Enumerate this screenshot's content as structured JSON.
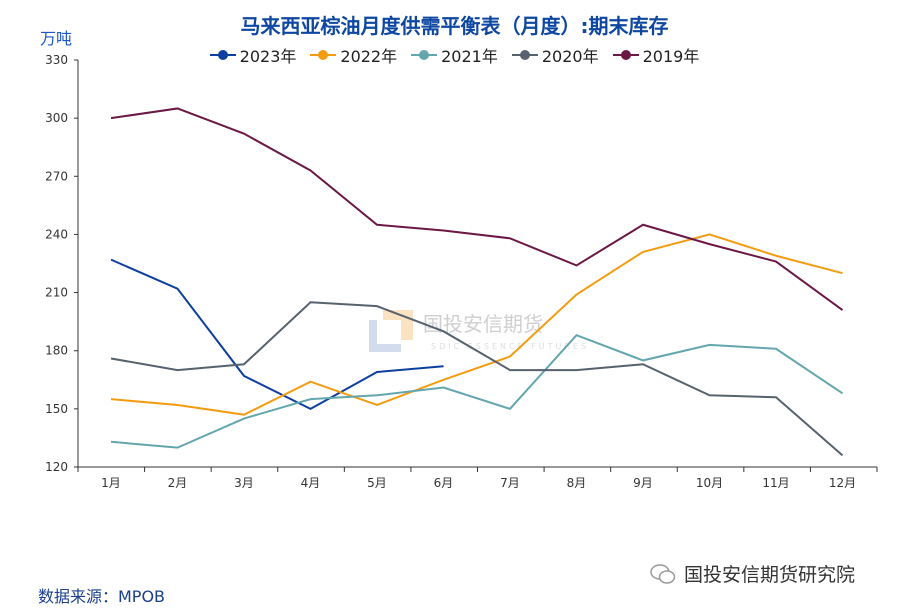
{
  "chart_data": {
    "type": "line",
    "title": "马来西亚棕油月度供需平衡表（月度）:期末库存",
    "ylabel": "万吨",
    "ylim": [
      120,
      330
    ],
    "yticks": [
      120,
      150,
      180,
      210,
      240,
      270,
      300,
      330
    ],
    "categories": [
      "1月",
      "2月",
      "3月",
      "4月",
      "5月",
      "6月",
      "7月",
      "8月",
      "9月",
      "10月",
      "11月",
      "12月"
    ],
    "legend_position": "top",
    "grid": false,
    "series": [
      {
        "name": "2023年",
        "color": "#0d3f9e",
        "values": [
          227,
          212,
          167,
          150,
          169,
          172,
          null,
          null,
          null,
          null,
          null,
          null
        ]
      },
      {
        "name": "2022年",
        "color": "#f39c12",
        "values": [
          155,
          152,
          147,
          164,
          152,
          165,
          177,
          209,
          231,
          240,
          229,
          220
        ]
      },
      {
        "name": "2021年",
        "color": "#63a6ad",
        "values": [
          133,
          130,
          145,
          155,
          157,
          161,
          150,
          188,
          175,
          183,
          181,
          158
        ]
      },
      {
        "name": "2020年",
        "color": "#56626e",
        "values": [
          176,
          170,
          173,
          205,
          203,
          190,
          170,
          170,
          173,
          157,
          156,
          126
        ]
      },
      {
        "name": "2019年",
        "color": "#6b1845",
        "values": [
          300,
          305,
          292,
          273,
          245,
          242,
          238,
          224,
          245,
          235,
          226,
          201
        ]
      }
    ]
  },
  "source": "数据来源：MPOB",
  "watermark": {
    "cn": "国投安信期货",
    "en": "SDIC ESSENCE FUTURES"
  },
  "account": "国投安信期货研究院"
}
